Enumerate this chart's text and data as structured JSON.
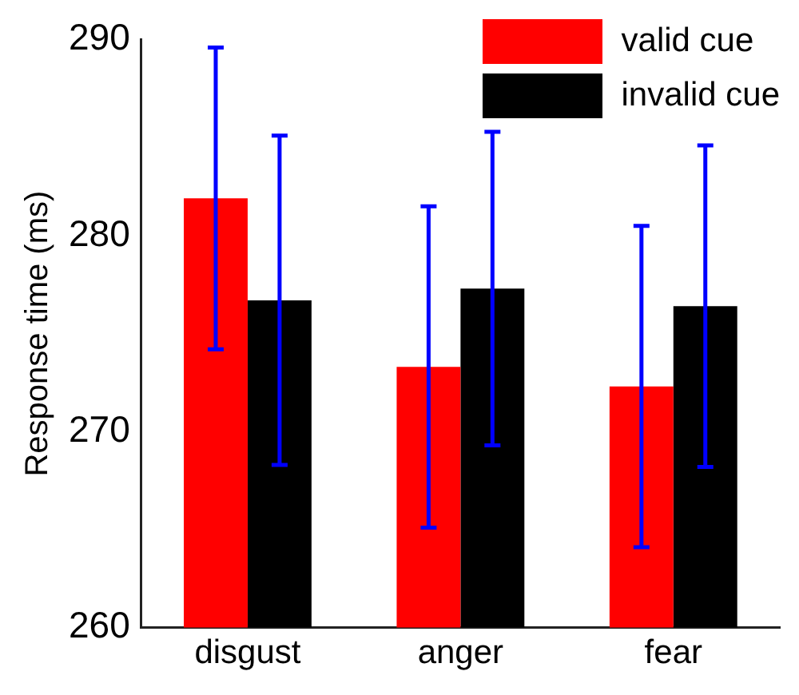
{
  "chart_data": {
    "type": "bar",
    "ylabel": "Response time (ms)",
    "categories": [
      "disgust",
      "anger",
      "fear"
    ],
    "series": [
      {
        "name": "valid cue",
        "color": "#ff0000",
        "values": [
          281.9,
          273.3,
          272.3
        ],
        "errors": [
          7.7,
          8.2,
          8.2
        ]
      },
      {
        "name": "invalid cue",
        "color": "#000000",
        "values": [
          276.7,
          277.3,
          276.4
        ],
        "errors": [
          8.4,
          8.0,
          8.2
        ]
      }
    ],
    "ylim": [
      260,
      290
    ],
    "yticks": [
      260,
      270,
      280,
      290
    ],
    "grid": false,
    "legend": "top right"
  }
}
